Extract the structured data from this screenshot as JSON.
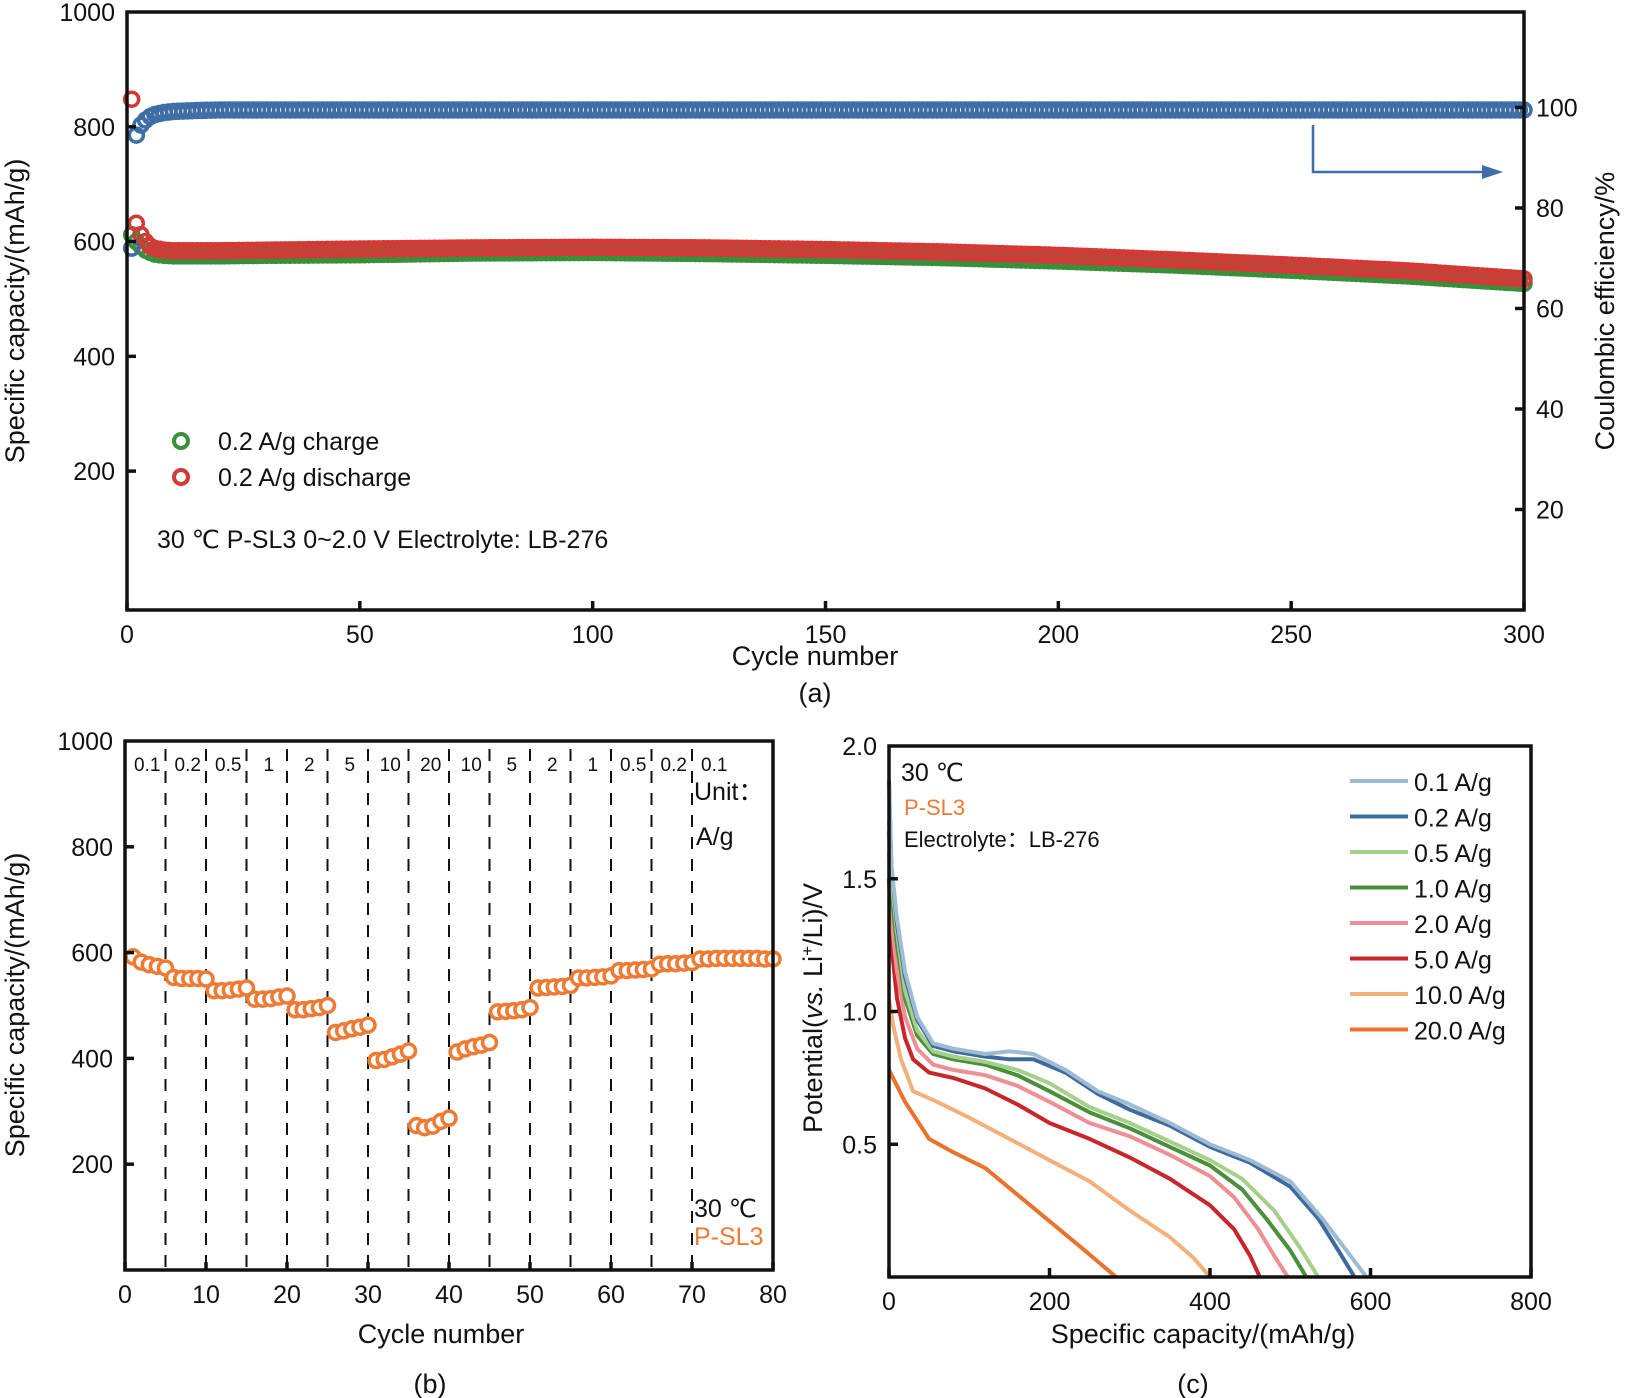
{
  "chart_data": [
    {
      "id": "a",
      "type": "scatter",
      "panel_label": "(a)",
      "title": "",
      "xlabel": "Cycle number",
      "ylabel": "Specific capacity/(mAh/g)",
      "y2label": "Coulombic efficiency/%",
      "xlim": [
        0,
        300
      ],
      "ylim": [
        -42,
        1000
      ],
      "y2lim": [
        0,
        119
      ],
      "xticks": [
        0,
        50,
        100,
        150,
        200,
        250,
        300
      ],
      "yticks": [
        200,
        400,
        600,
        800,
        1000
      ],
      "y2ticks": [
        20,
        40,
        60,
        80,
        100
      ],
      "legend": [
        {
          "label": "0.2 A/g charge",
          "color": "#3a8f3a"
        },
        {
          "label": "0.2 A/g discharge",
          "color": "#d23a35"
        }
      ],
      "legend_position": "bottom-left",
      "annotation": "30 ℃ P-SL3 0~2.0 V Electrolyte: LB-276",
      "arrow_note": "efficiency series refers to right axis",
      "series": [
        {
          "name": "0.2 A/g charge",
          "axis": "left",
          "color": "#3a8f3a",
          "x": [
            1,
            2,
            3,
            4,
            5,
            6,
            8,
            10,
            15,
            20,
            30,
            50,
            75,
            100,
            125,
            150,
            175,
            200,
            225,
            250,
            275,
            300
          ],
          "values": [
            612,
            600,
            592,
            585,
            581,
            578,
            576,
            575,
            575,
            575,
            576,
            577,
            580,
            581,
            579,
            576,
            572,
            566,
            559,
            550,
            540,
            527
          ]
        },
        {
          "name": "0.2 A/g discharge",
          "axis": "left",
          "color": "#d23a35",
          "x": [
            1,
            2,
            3,
            4,
            5,
            6,
            8,
            10,
            15,
            20,
            30,
            50,
            75,
            100,
            125,
            150,
            175,
            200,
            225,
            250,
            275,
            300
          ],
          "values": [
            848,
            632,
            612,
            600,
            592,
            588,
            585,
            584,
            584,
            584,
            585,
            587,
            589,
            590,
            589,
            586,
            582,
            576,
            568,
            559,
            549,
            535
          ]
        },
        {
          "name": "Coulombic efficiency",
          "axis": "right",
          "color": "#3f6ea6",
          "x": [
            1,
            2,
            3,
            4,
            5,
            6,
            8,
            10,
            15,
            20,
            30,
            50,
            75,
            100,
            150,
            200,
            250,
            300
          ],
          "values": [
            72,
            94.5,
            96.5,
            97.5,
            98.2,
            98.6,
            99,
            99.2,
            99.4,
            99.5,
            99.5,
            99.5,
            99.5,
            99.5,
            99.5,
            99.5,
            99.5,
            99.5
          ]
        }
      ]
    },
    {
      "id": "b",
      "type": "scatter",
      "panel_label": "(b)",
      "title": "",
      "xlabel": "Cycle number",
      "ylabel": "Specific capacity/(mAh/g)",
      "xlim": [
        0,
        80
      ],
      "ylim": [
        0,
        1000
      ],
      "xticks": [
        0,
        10,
        20,
        30,
        40,
        50,
        60,
        70,
        80
      ],
      "yticks": [
        200,
        400,
        600,
        800,
        1000
      ],
      "color": "#ee7a33",
      "rate_dividers": [
        5,
        10,
        15,
        20,
        25,
        30,
        35,
        40,
        45,
        50,
        55,
        60,
        65,
        70
      ],
      "rate_labels": [
        "0.1",
        "0.2",
        "0.5",
        "1",
        "2",
        "5",
        "10",
        "20",
        "10",
        "5",
        "2",
        "1",
        "0.5",
        "0.2",
        "0.1"
      ],
      "unit_label_line1": "Unit：",
      "unit_label_line2": "A/g",
      "temp_label": "30 ℃",
      "sample_label": "P-SL3",
      "sample_color": "#ee7a33",
      "series": [
        {
          "name": "rate capability",
          "x": [
            1,
            2,
            3,
            4,
            5,
            6,
            7,
            8,
            9,
            10,
            11,
            12,
            13,
            14,
            15,
            16,
            17,
            18,
            19,
            20,
            21,
            22,
            23,
            24,
            25,
            26,
            27,
            28,
            29,
            30,
            31,
            32,
            33,
            34,
            35,
            36,
            37,
            38,
            39,
            40,
            41,
            42,
            43,
            44,
            45,
            46,
            47,
            48,
            49,
            50,
            51,
            52,
            53,
            54,
            55,
            56,
            57,
            58,
            59,
            60,
            61,
            62,
            63,
            64,
            65,
            66,
            67,
            68,
            69,
            70,
            71,
            72,
            73,
            74,
            75,
            76,
            77,
            78,
            79,
            80
          ],
          "values": [
            592,
            582,
            577,
            574,
            571,
            553,
            551,
            551,
            551,
            550,
            528,
            528,
            529,
            531,
            533,
            512,
            512,
            513,
            516,
            518,
            492,
            492,
            494,
            496,
            500,
            449,
            452,
            456,
            459,
            463,
            396,
            398,
            403,
            408,
            414,
            273,
            269,
            272,
            281,
            287,
            412,
            418,
            422,
            425,
            430,
            488,
            489,
            490,
            492,
            496,
            533,
            534,
            535,
            536,
            538,
            552,
            552,
            553,
            554,
            556,
            566,
            566,
            567,
            568,
            569,
            578,
            579,
            579,
            580,
            581,
            588,
            588,
            589,
            589,
            589,
            589,
            589,
            589,
            588,
            588
          ]
        }
      ]
    },
    {
      "id": "c",
      "type": "line",
      "panel_label": "(c)",
      "title": "",
      "xlabel": "Specific capacity/(mAh/g)",
      "ylabel_prefix": "Potential(",
      "ylabel_italic": "vs.",
      "ylabel_mid": " Li",
      "ylabel_sup": "+",
      "ylabel_suffix": "/Li)/V",
      "xlim": [
        0,
        800
      ],
      "ylim": [
        0,
        2.0
      ],
      "xticks": [
        0,
        200,
        400,
        600,
        800
      ],
      "yticks": [
        0.5,
        1.0,
        1.5,
        2.0
      ],
      "ytick_labels": [
        "0.5",
        "1.0",
        "1.5",
        "2.0"
      ],
      "legend_position": "top-right",
      "temp_label": "30 ℃",
      "sample_label": "P-SL3",
      "sample_color": "#ee7a33",
      "electrolyte_label": "Electrolyte：LB-276",
      "series": [
        {
          "name": "0.1 A/g",
          "color": "#9dbcd4",
          "x": [
            0,
            3,
            10,
            20,
            35,
            55,
            80,
            120,
            150,
            180,
            220,
            260,
            300,
            350,
            400,
            450,
            500,
            540,
            570,
            595
          ],
          "values": [
            1.85,
            1.55,
            1.35,
            1.15,
            0.98,
            0.88,
            0.86,
            0.84,
            0.85,
            0.84,
            0.78,
            0.7,
            0.65,
            0.58,
            0.5,
            0.44,
            0.36,
            0.22,
            0.1,
            0.0
          ]
        },
        {
          "name": "0.2 A/g",
          "color": "#3f6a9e",
          "x": [
            0,
            3,
            10,
            20,
            35,
            55,
            80,
            120,
            150,
            180,
            220,
            260,
            300,
            350,
            400,
            450,
            500,
            535,
            560,
            580
          ],
          "values": [
            1.87,
            1.55,
            1.33,
            1.13,
            0.97,
            0.87,
            0.85,
            0.83,
            0.82,
            0.82,
            0.77,
            0.69,
            0.63,
            0.57,
            0.49,
            0.43,
            0.34,
            0.22,
            0.1,
            0.0
          ]
        },
        {
          "name": "0.5 A/g",
          "color": "#a6d08a",
          "x": [
            0,
            3,
            10,
            20,
            35,
            55,
            80,
            120,
            160,
            200,
            250,
            300,
            350,
            400,
            440,
            480,
            510,
            535
          ],
          "values": [
            1.72,
            1.5,
            1.3,
            1.08,
            0.93,
            0.85,
            0.83,
            0.81,
            0.78,
            0.73,
            0.64,
            0.58,
            0.51,
            0.44,
            0.37,
            0.25,
            0.12,
            0.0
          ]
        },
        {
          "name": "1.0 A/g",
          "color": "#4a8f3a",
          "x": [
            0,
            3,
            10,
            20,
            35,
            55,
            80,
            120,
            160,
            200,
            250,
            300,
            350,
            400,
            440,
            470,
            500,
            520
          ],
          "values": [
            1.68,
            1.45,
            1.25,
            1.05,
            0.91,
            0.84,
            0.82,
            0.8,
            0.76,
            0.7,
            0.62,
            0.56,
            0.49,
            0.42,
            0.33,
            0.22,
            0.1,
            0.0
          ]
        },
        {
          "name": "2.0 A/g",
          "color": "#ee8f96",
          "x": [
            0,
            3,
            10,
            20,
            35,
            55,
            80,
            120,
            160,
            200,
            250,
            300,
            350,
            400,
            430,
            460,
            480,
            497
          ],
          "values": [
            1.6,
            1.35,
            1.15,
            0.98,
            0.86,
            0.8,
            0.78,
            0.76,
            0.72,
            0.66,
            0.58,
            0.53,
            0.46,
            0.38,
            0.3,
            0.18,
            0.08,
            0.0
          ]
        },
        {
          "name": "5.0 A/g",
          "color": "#c8262b",
          "x": [
            0,
            3,
            10,
            20,
            30,
            50,
            80,
            120,
            160,
            200,
            250,
            300,
            350,
            400,
            430,
            450,
            462
          ],
          "values": [
            1.5,
            1.25,
            1.05,
            0.9,
            0.82,
            0.77,
            0.75,
            0.71,
            0.65,
            0.58,
            0.52,
            0.45,
            0.37,
            0.27,
            0.18,
            0.08,
            0.0
          ]
        },
        {
          "name": "10.0 A/g",
          "color": "#f2b07a",
          "x": [
            0,
            5,
            15,
            30,
            60,
            100,
            150,
            200,
            250,
            300,
            350,
            380,
            400
          ],
          "values": [
            1.05,
            0.95,
            0.82,
            0.7,
            0.66,
            0.6,
            0.52,
            0.44,
            0.36,
            0.25,
            0.15,
            0.07,
            0.0
          ]
        },
        {
          "name": "20.0 A/g",
          "color": "#e9732c",
          "x": [
            0,
            20,
            50,
            80,
            120,
            160,
            200,
            240,
            283
          ],
          "values": [
            0.78,
            0.66,
            0.52,
            0.47,
            0.41,
            0.31,
            0.21,
            0.11,
            0.0
          ]
        }
      ]
    }
  ]
}
